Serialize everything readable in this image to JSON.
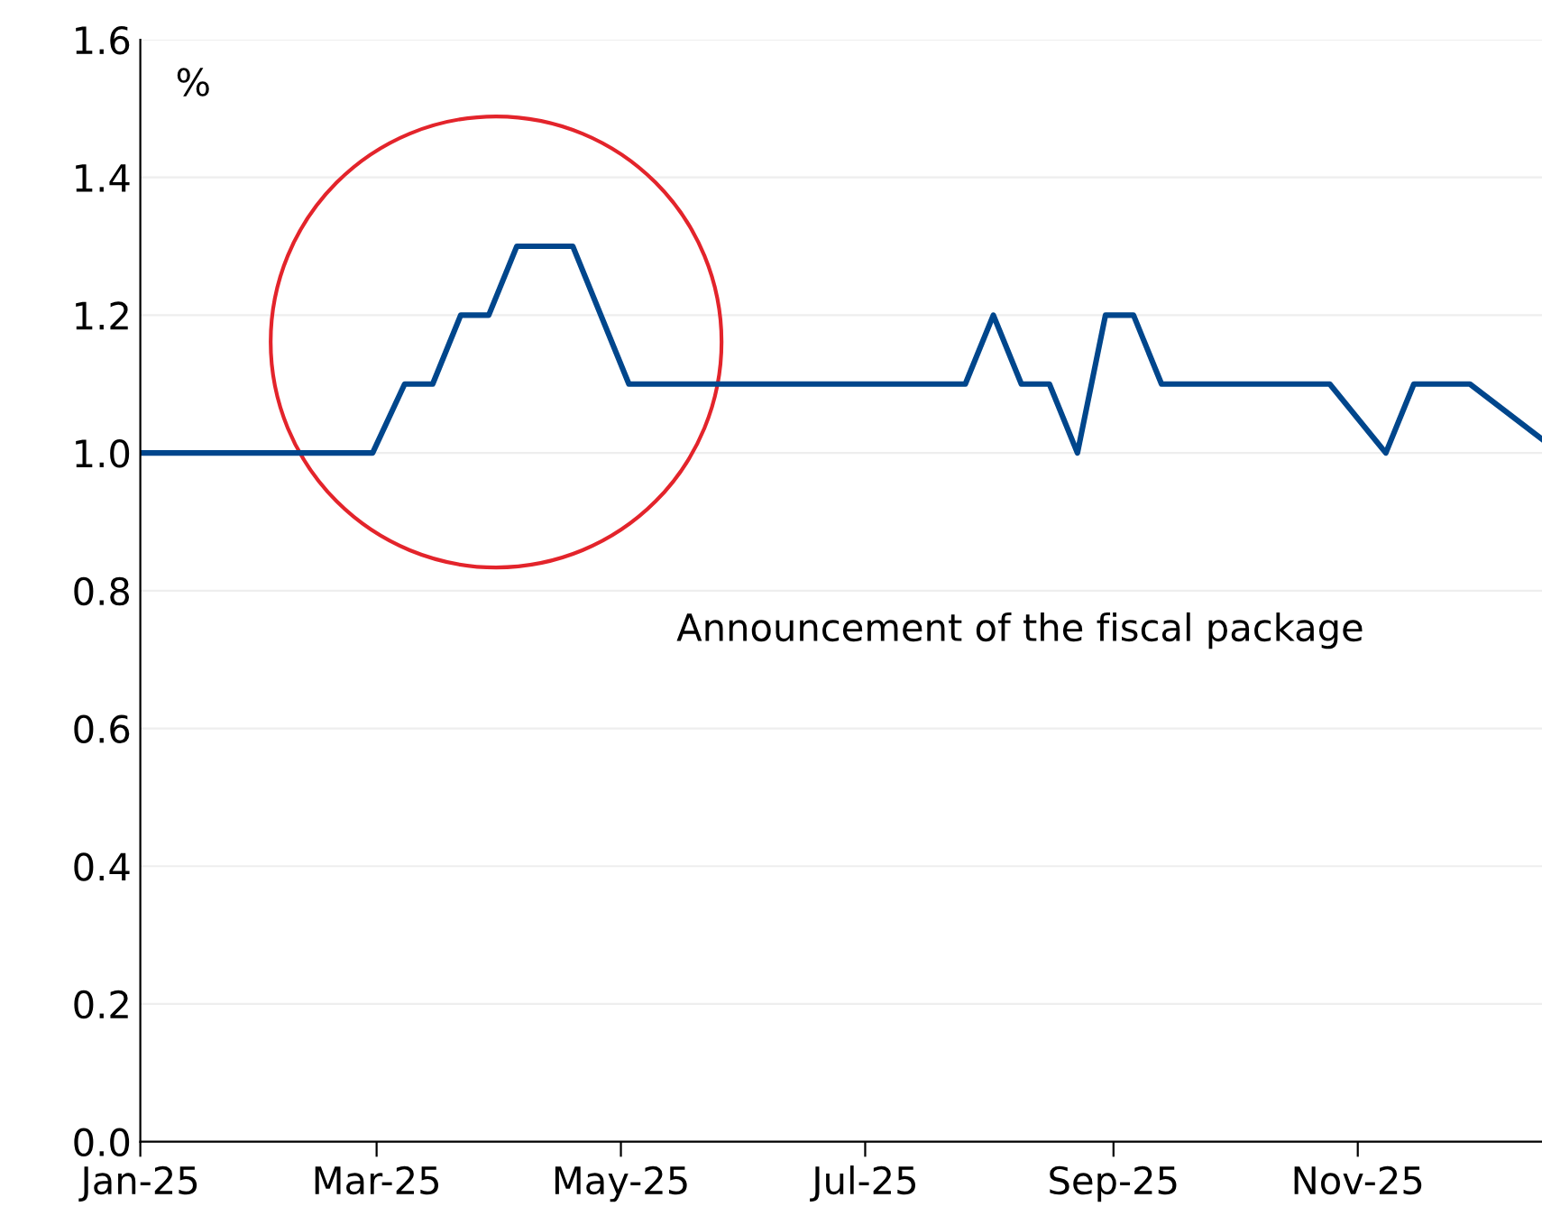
{
  "chart_data": {
    "type": "line",
    "ylabel": "%",
    "x": [
      "2025-01-01",
      "2025-02-28",
      "2025-03-08",
      "2025-03-15",
      "2025-03-22",
      "2025-03-29",
      "2025-04-05",
      "2025-04-19",
      "2025-05-03",
      "2025-07-26",
      "2025-08-02",
      "2025-08-09",
      "2025-08-16",
      "2025-08-23",
      "2025-08-30",
      "2025-09-06",
      "2025-09-13",
      "2025-10-25",
      "2025-11-08",
      "2025-11-15",
      "2025-11-29",
      "2025-12-17"
    ],
    "series": [
      {
        "color": "#00468c",
        "values": [
          1.0,
          1.0,
          1.1,
          1.1,
          1.2,
          1.2,
          1.3,
          1.3,
          1.1,
          1.1,
          1.2,
          1.1,
          1.1,
          1.0,
          1.2,
          1.2,
          1.1,
          1.1,
          1.0,
          1.1,
          1.1,
          1.02
        ]
      }
    ],
    "xlim": [
      "2025-01-01",
      "2025-12-17"
    ],
    "xticks": [
      {
        "value": "2025-01-01",
        "label": "Jan-25"
      },
      {
        "value": "2025-03-01",
        "label": "Mar-25"
      },
      {
        "value": "2025-05-01",
        "label": "May-25"
      },
      {
        "value": "2025-07-01",
        "label": "Jul-25"
      },
      {
        "value": "2025-09-01",
        "label": "Sep-25"
      },
      {
        "value": "2025-11-01",
        "label": "Nov-25"
      }
    ],
    "ylim": [
      0,
      1.6
    ],
    "yticks": [
      {
        "value": 0,
        "label": "0.0"
      },
      {
        "value": 0.2,
        "label": "0.2"
      },
      {
        "value": 0.4,
        "label": "0.4"
      },
      {
        "value": 0.6,
        "label": "0.6"
      },
      {
        "value": 0.8,
        "label": "0.8"
      },
      {
        "value": 1.0,
        "label": "1.0"
      },
      {
        "value": 1.2,
        "label": "1.2"
      },
      {
        "value": 1.4,
        "label": "1.4"
      },
      {
        "value": 1.6,
        "label": "1.6"
      }
    ],
    "grid": "y",
    "annotations": [
      "Announcement of the fiscal package"
    ]
  }
}
